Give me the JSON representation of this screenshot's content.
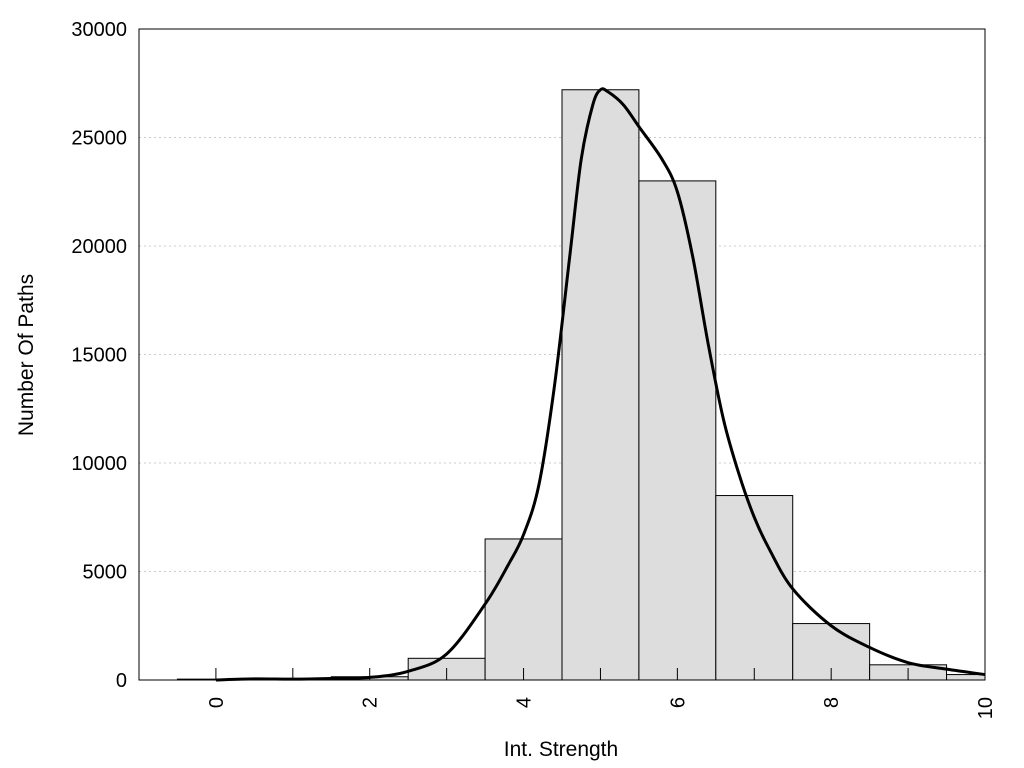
{
  "chart_data": {
    "type": "bar",
    "title": "",
    "xlabel": "Int. Strength",
    "ylabel": "Number Of Paths",
    "xlim": [
      -1,
      10
    ],
    "ylim": [
      0,
      30000
    ],
    "x_ticks": [
      0,
      2,
      4,
      6,
      8,
      10
    ],
    "y_ticks": [
      0,
      5000,
      10000,
      15000,
      20000,
      25000,
      30000
    ],
    "minor_x_ticks": [
      0,
      1,
      2,
      3,
      4,
      5,
      6,
      7,
      8,
      9,
      10
    ],
    "grid": "horizontal dotted",
    "bar_width": 1,
    "bars": [
      {
        "x": 0,
        "value": 40
      },
      {
        "x": 1,
        "value": 60
      },
      {
        "x": 2,
        "value": 150
      },
      {
        "x": 3,
        "value": 1000
      },
      {
        "x": 4,
        "value": 6500
      },
      {
        "x": 5,
        "value": 27200
      },
      {
        "x": 6,
        "value": 23000
      },
      {
        "x": 7,
        "value": 8500
      },
      {
        "x": 8,
        "value": 2600
      },
      {
        "x": 9,
        "value": 700
      },
      {
        "x": 10,
        "value": 250
      }
    ],
    "curve": {
      "x": [
        0,
        0.5,
        1,
        1.5,
        2,
        2.5,
        3,
        3.5,
        3.8,
        4,
        4.2,
        4.4,
        4.6,
        4.75,
        4.9,
        5.0,
        5.1,
        5.3,
        5.5,
        5.8,
        6.0,
        6.2,
        6.4,
        6.6,
        6.8,
        7.0,
        7.2,
        7.5,
        8.0,
        8.5,
        9.0,
        9.5,
        10
      ],
      "y": [
        0,
        50,
        40,
        70,
        120,
        400,
        1200,
        3500,
        5300,
        6700,
        9000,
        13500,
        19500,
        24000,
        26500,
        27200,
        27100,
        26500,
        25500,
        24000,
        22500,
        19500,
        15500,
        12000,
        9500,
        7500,
        6000,
        4200,
        2500,
        1500,
        800,
        500,
        250
      ]
    },
    "colors": {
      "bar_fill": "#dddddd",
      "bar_stroke": "#000000",
      "curve": "#000000",
      "grid": "#cccccc"
    }
  }
}
